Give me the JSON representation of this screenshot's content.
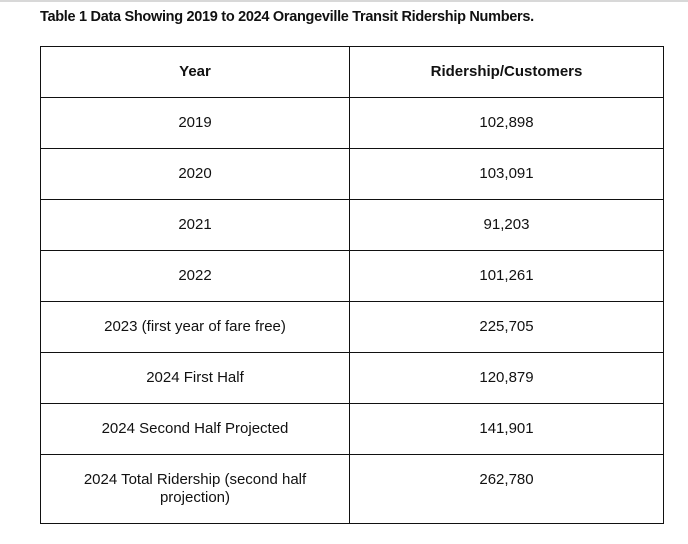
{
  "document": {
    "title": "Table 1 Data Showing 2019 to 2024 Orangeville Transit Ridership Numbers."
  },
  "table": {
    "headers": [
      "Year",
      "Ridership/Customers"
    ],
    "rows": [
      {
        "year": "2019",
        "ridership": "102,898"
      },
      {
        "year": "2020",
        "ridership": "103,091"
      },
      {
        "year": "2021",
        "ridership": "91,203"
      },
      {
        "year": "2022",
        "ridership": "101,261"
      },
      {
        "year": "2023 (first year of fare free)",
        "ridership": "225,705"
      },
      {
        "year": "2024 First Half",
        "ridership": "120,879"
      },
      {
        "year": "2024 Second Half Projected",
        "ridership": "141,901"
      },
      {
        "year": "2024 Total Ridership (second half projection)",
        "ridership": "262,780"
      }
    ]
  }
}
